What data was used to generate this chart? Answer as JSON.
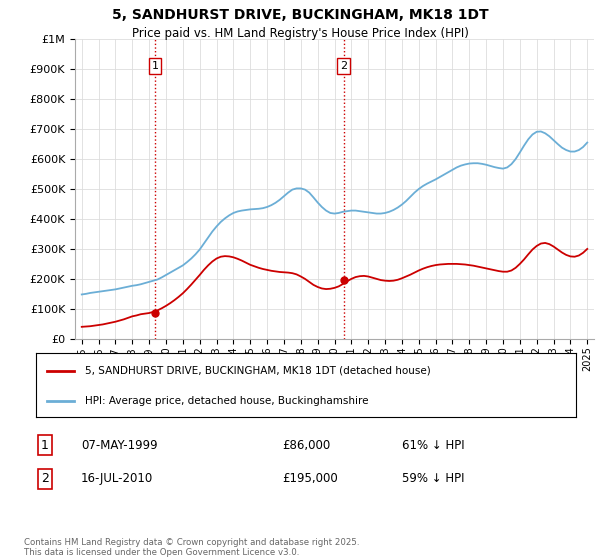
{
  "title": "5, SANDHURST DRIVE, BUCKINGHAM, MK18 1DT",
  "subtitle": "Price paid vs. HM Land Registry's House Price Index (HPI)",
  "legend_property": "5, SANDHURST DRIVE, BUCKINGHAM, MK18 1DT (detached house)",
  "legend_hpi": "HPI: Average price, detached house, Buckinghamshire",
  "footnote": "Contains HM Land Registry data © Crown copyright and database right 2025.\nThis data is licensed under the Open Government Licence v3.0.",
  "transaction1_label": "1",
  "transaction1_date": "07-MAY-1999",
  "transaction1_price": "£86,000",
  "transaction1_hpi": "61% ↓ HPI",
  "transaction1_year": 1999.35,
  "transaction1_value": 86000,
  "transaction2_label": "2",
  "transaction2_date": "16-JUL-2010",
  "transaction2_price": "£195,000",
  "transaction2_hpi": "59% ↓ HPI",
  "transaction2_year": 2010.54,
  "transaction2_value": 195000,
  "property_color": "#cc0000",
  "hpi_color": "#6baed6",
  "vline_color": "#cc0000",
  "background_color": "#ffffff",
  "grid_color": "#dddddd",
  "ylim_max": 1000000,
  "ylim_min": 0,
  "hpi_data_years": [
    1995.0,
    1995.25,
    1995.5,
    1995.75,
    1996.0,
    1996.25,
    1996.5,
    1996.75,
    1997.0,
    1997.25,
    1997.5,
    1997.75,
    1998.0,
    1998.25,
    1998.5,
    1998.75,
    1999.0,
    1999.25,
    1999.5,
    1999.75,
    2000.0,
    2000.25,
    2000.5,
    2000.75,
    2001.0,
    2001.25,
    2001.5,
    2001.75,
    2002.0,
    2002.25,
    2002.5,
    2002.75,
    2003.0,
    2003.25,
    2003.5,
    2003.75,
    2004.0,
    2004.25,
    2004.5,
    2004.75,
    2005.0,
    2005.25,
    2005.5,
    2005.75,
    2006.0,
    2006.25,
    2006.5,
    2006.75,
    2007.0,
    2007.25,
    2007.5,
    2007.75,
    2008.0,
    2008.25,
    2008.5,
    2008.75,
    2009.0,
    2009.25,
    2009.5,
    2009.75,
    2010.0,
    2010.25,
    2010.5,
    2010.75,
    2011.0,
    2011.25,
    2011.5,
    2011.75,
    2012.0,
    2012.25,
    2012.5,
    2012.75,
    2013.0,
    2013.25,
    2013.5,
    2013.75,
    2014.0,
    2014.25,
    2014.5,
    2014.75,
    2015.0,
    2015.25,
    2015.5,
    2015.75,
    2016.0,
    2016.25,
    2016.5,
    2016.75,
    2017.0,
    2017.25,
    2017.5,
    2017.75,
    2018.0,
    2018.25,
    2018.5,
    2018.75,
    2019.0,
    2019.25,
    2019.5,
    2019.75,
    2020.0,
    2020.25,
    2020.5,
    2020.75,
    2021.0,
    2021.25,
    2021.5,
    2021.75,
    2022.0,
    2022.25,
    2022.5,
    2022.75,
    2023.0,
    2023.25,
    2023.5,
    2023.75,
    2024.0,
    2024.25,
    2024.5,
    2024.75,
    2025.0
  ],
  "hpi_data_values": [
    148000,
    150000,
    153000,
    155000,
    157000,
    159000,
    161000,
    163000,
    165000,
    168000,
    171000,
    174000,
    177000,
    179000,
    182000,
    186000,
    190000,
    194000,
    198000,
    205000,
    213000,
    221000,
    229000,
    237000,
    245000,
    256000,
    268000,
    282000,
    298000,
    318000,
    338000,
    358000,
    375000,
    390000,
    402000,
    412000,
    420000,
    425000,
    428000,
    430000,
    432000,
    433000,
    434000,
    436000,
    440000,
    446000,
    454000,
    464000,
    476000,
    488000,
    498000,
    502000,
    502000,
    498000,
    488000,
    472000,
    455000,
    440000,
    428000,
    420000,
    418000,
    420000,
    424000,
    426000,
    428000,
    428000,
    426000,
    424000,
    422000,
    420000,
    418000,
    418000,
    420000,
    424000,
    430000,
    438000,
    448000,
    460000,
    474000,
    488000,
    500000,
    510000,
    518000,
    525000,
    532000,
    540000,
    548000,
    556000,
    564000,
    572000,
    578000,
    582000,
    585000,
    586000,
    586000,
    584000,
    581000,
    577000,
    573000,
    570000,
    568000,
    572000,
    583000,
    600000,
    622000,
    645000,
    666000,
    682000,
    691000,
    692000,
    686000,
    676000,
    663000,
    650000,
    638000,
    630000,
    625000,
    625000,
    630000,
    640000,
    655000
  ],
  "property_data_years": [
    1995.0,
    1995.25,
    1995.5,
    1995.75,
    1996.0,
    1996.25,
    1996.5,
    1996.75,
    1997.0,
    1997.25,
    1997.5,
    1997.75,
    1998.0,
    1998.25,
    1998.5,
    1998.75,
    1999.0,
    1999.25,
    1999.5,
    1999.75,
    2000.0,
    2000.25,
    2000.5,
    2000.75,
    2001.0,
    2001.25,
    2001.5,
    2001.75,
    2002.0,
    2002.25,
    2002.5,
    2002.75,
    2003.0,
    2003.25,
    2003.5,
    2003.75,
    2004.0,
    2004.25,
    2004.5,
    2004.75,
    2005.0,
    2005.25,
    2005.5,
    2005.75,
    2006.0,
    2006.25,
    2006.5,
    2006.75,
    2007.0,
    2007.25,
    2007.5,
    2007.75,
    2008.0,
    2008.25,
    2008.5,
    2008.75,
    2009.0,
    2009.25,
    2009.5,
    2009.75,
    2010.0,
    2010.25,
    2010.5,
    2010.75,
    2011.0,
    2011.25,
    2011.5,
    2011.75,
    2012.0,
    2012.25,
    2012.5,
    2012.75,
    2013.0,
    2013.25,
    2013.5,
    2013.75,
    2014.0,
    2014.25,
    2014.5,
    2014.75,
    2015.0,
    2015.25,
    2015.5,
    2015.75,
    2016.0,
    2016.25,
    2016.5,
    2016.75,
    2017.0,
    2017.25,
    2017.5,
    2017.75,
    2018.0,
    2018.25,
    2018.5,
    2018.75,
    2019.0,
    2019.25,
    2019.5,
    2019.75,
    2020.0,
    2020.25,
    2020.5,
    2020.75,
    2021.0,
    2021.25,
    2021.5,
    2021.75,
    2022.0,
    2022.25,
    2022.5,
    2022.75,
    2023.0,
    2023.25,
    2023.5,
    2023.75,
    2024.0,
    2024.25,
    2024.5,
    2024.75,
    2025.0
  ],
  "property_data_values": [
    40000,
    41000,
    42000,
    44000,
    46000,
    48000,
    51000,
    54000,
    57000,
    61000,
    65000,
    70000,
    75000,
    78000,
    82000,
    84000,
    86000,
    90000,
    95000,
    102000,
    110000,
    119000,
    129000,
    140000,
    152000,
    166000,
    181000,
    197000,
    213000,
    230000,
    245000,
    258000,
    268000,
    274000,
    276000,
    275000,
    272000,
    267000,
    261000,
    254000,
    247000,
    242000,
    237000,
    233000,
    230000,
    227000,
    225000,
    223000,
    222000,
    221000,
    219000,
    215000,
    208000,
    200000,
    190000,
    180000,
    173000,
    168000,
    166000,
    167000,
    170000,
    175000,
    183000,
    192000,
    200000,
    206000,
    209000,
    210000,
    208000,
    204000,
    200000,
    196000,
    194000,
    193000,
    194000,
    197000,
    202000,
    208000,
    214000,
    221000,
    228000,
    234000,
    239000,
    243000,
    246000,
    248000,
    249000,
    250000,
    250000,
    250000,
    249000,
    248000,
    246000,
    244000,
    241000,
    238000,
    235000,
    232000,
    229000,
    226000,
    224000,
    224000,
    228000,
    237000,
    250000,
    265000,
    282000,
    298000,
    310000,
    318000,
    320000,
    316000,
    308000,
    298000,
    288000,
    280000,
    275000,
    274000,
    278000,
    287000,
    300000
  ]
}
